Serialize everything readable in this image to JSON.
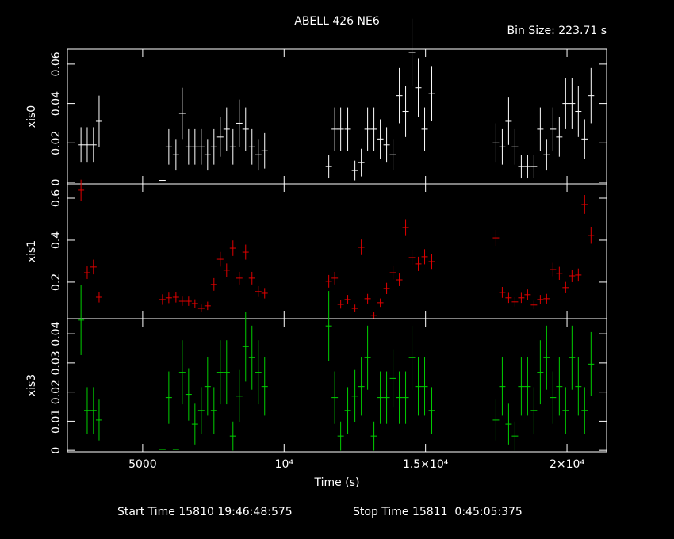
{
  "chart_data": {
    "type": "errorbar",
    "title": "ABELL 426 NE6",
    "bin_size_label": "Bin Size: 223.71 s",
    "bin_size": 223.71,
    "x_label": "Time (s)",
    "start_label": "Start Time 15810 19:46:48:575",
    "stop_label": "Stop Time 15811  0:45:05:375",
    "xlim": [
      2340,
      21400
    ],
    "xticks": [
      5000,
      {
        "value": 10000,
        "label": "10⁴"
      },
      {
        "value": 15000,
        "label": "1.5×10⁴"
      },
      {
        "value": 20000,
        "label": "2×10⁴"
      }
    ],
    "x": [
      2820,
      3040,
      3260,
      3460,
      5700,
      5924,
      6176,
      6400,
      6624,
      6848,
      7072,
      7296,
      7520,
      7744,
      7968,
      8192,
      8416,
      8640,
      8864,
      9088,
      9312,
      11580,
      11790,
      12000,
      12250,
      12504,
      12728,
      12952,
      13176,
      13400,
      13624,
      13848,
      14072,
      14296,
      14520,
      14744,
      14968,
      15220,
      17488,
      17712,
      17936,
      18160,
      18384,
      18608,
      18832,
      19056,
      19280,
      19504,
      19728,
      19952,
      20176,
      20400,
      20624,
      20848
    ],
    "series": [
      {
        "name": "xis0",
        "color": "#ffffff",
        "ylim": [
          -0.0008,
          0.0676
        ],
        "yticks": [
          0,
          0.02,
          0.04,
          0.06
        ],
        "values": [
          0.019,
          0.019,
          0.019,
          0.031,
          0.001,
          0.018,
          0.014,
          0.035,
          0.018,
          0.018,
          0.018,
          0.014,
          0.018,
          0.023,
          0.027,
          0.018,
          0.03,
          0.027,
          0.018,
          0.014,
          0.016,
          0.008,
          0.027,
          0.027,
          0.027,
          0.006,
          0.01,
          0.027,
          0.027,
          0.022,
          0.019,
          0.014,
          0.044,
          0.036,
          0.066,
          0.048,
          0.027,
          0.045,
          0.02,
          0.018,
          0.031,
          0.018,
          0.008,
          0.008,
          0.008,
          0.027,
          0.014,
          0.027,
          0.023,
          0.04,
          0.04,
          0.036,
          0.022,
          0.044
        ],
        "errors": [
          0.009,
          0.009,
          0.009,
          0.013,
          0,
          0.009,
          0.008,
          0.013,
          0.009,
          0.009,
          0.009,
          0.008,
          0.009,
          0.01,
          0.011,
          0.009,
          0.012,
          0.011,
          0.009,
          0.008,
          0.009,
          0.006,
          0.011,
          0.011,
          0.011,
          0.005,
          0.007,
          0.011,
          0.011,
          0.01,
          0.009,
          0.008,
          0.014,
          0.013,
          0.017,
          0.015,
          0.011,
          0.014,
          0.01,
          0.009,
          0.012,
          0.009,
          0.006,
          0.006,
          0.006,
          0.011,
          0.008,
          0.011,
          0.01,
          0.013,
          0.013,
          0.013,
          0.01,
          0.014
        ]
      },
      {
        "name": "xis1",
        "color": "#e00000",
        "ylim": [
          0.026,
          0.668
        ],
        "yticks": [
          0.2,
          0.4,
          0.6
        ],
        "values": [
          0.638,
          0.245,
          0.272,
          0.128,
          0.117,
          0.125,
          0.128,
          0.109,
          0.109,
          0.098,
          0.075,
          0.087,
          0.189,
          0.309,
          0.257,
          0.362,
          0.219,
          0.343,
          0.219,
          0.155,
          0.147,
          0.204,
          0.219,
          0.094,
          0.117,
          0.075,
          0.366,
          0.121,
          0.042,
          0.102,
          0.17,
          0.245,
          0.211,
          0.46,
          0.317,
          0.287,
          0.321,
          0.298,
          0.411,
          0.151,
          0.125,
          0.106,
          0.125,
          0.14,
          0.091,
          0.117,
          0.121,
          0.26,
          0.242,
          0.174,
          0.23,
          0.234,
          0.57,
          0.423
        ],
        "errors": [
          0.05,
          0.03,
          0.035,
          0.025,
          0.025,
          0.025,
          0.025,
          0.022,
          0.022,
          0.02,
          0.018,
          0.02,
          0.03,
          0.035,
          0.032,
          0.037,
          0.03,
          0.036,
          0.03,
          0.026,
          0.025,
          0.03,
          0.03,
          0.02,
          0.022,
          0.018,
          0.037,
          0.023,
          0.015,
          0.02,
          0.027,
          0.032,
          0.03,
          0.04,
          0.035,
          0.034,
          0.036,
          0.035,
          0.038,
          0.026,
          0.024,
          0.022,
          0.024,
          0.025,
          0.02,
          0.022,
          0.023,
          0.032,
          0.031,
          0.027,
          0.03,
          0.031,
          0.045,
          0.04
        ]
      },
      {
        "name": "xis3",
        "color": "#00d000",
        "ylim": [
          -0.0005,
          0.0452
        ],
        "yticks": [
          0,
          0.01,
          0.02,
          0.03,
          0.04
        ],
        "values": [
          0.0447,
          0.0137,
          0.0137,
          0.0104,
          0.0003,
          0.0181,
          0.0003,
          0.0268,
          0.0192,
          0.009,
          0.0137,
          0.0219,
          0.0137,
          0.0268,
          0.0268,
          0.0049,
          0.0186,
          0.0356,
          0.0318,
          0.0268,
          0.0219,
          0.0427,
          0.0181,
          0.0049,
          0.0137,
          0.0186,
          0.0219,
          0.0318,
          0.0049,
          0.0181,
          0.0181,
          0.0247,
          0.0181,
          0.0181,
          0.0318,
          0.0219,
          0.0219,
          0.0137,
          0.0104,
          0.0219,
          0.009,
          0.0049,
          0.0219,
          0.0219,
          0.0137,
          0.0268,
          0.0318,
          0.0181,
          0.0219,
          0.0137,
          0.0318,
          0.0219,
          0.0137,
          0.0296
        ],
        "errors": [
          0.012,
          0.008,
          0.008,
          0.007,
          0,
          0.009,
          0,
          0.011,
          0.009,
          0.007,
          0.008,
          0.01,
          0.008,
          0.011,
          0.011,
          0.005,
          0.009,
          0.012,
          0.011,
          0.011,
          0.01,
          0.012,
          0.009,
          0.005,
          0.008,
          0.009,
          0.01,
          0.011,
          0.005,
          0.009,
          0.009,
          0.01,
          0.009,
          0.009,
          0.011,
          0.01,
          0.01,
          0.008,
          0.007,
          0.01,
          0.007,
          0.005,
          0.01,
          0.01,
          0.008,
          0.011,
          0.011,
          0.009,
          0.01,
          0.008,
          0.011,
          0.01,
          0.008,
          0.011
        ]
      }
    ]
  }
}
